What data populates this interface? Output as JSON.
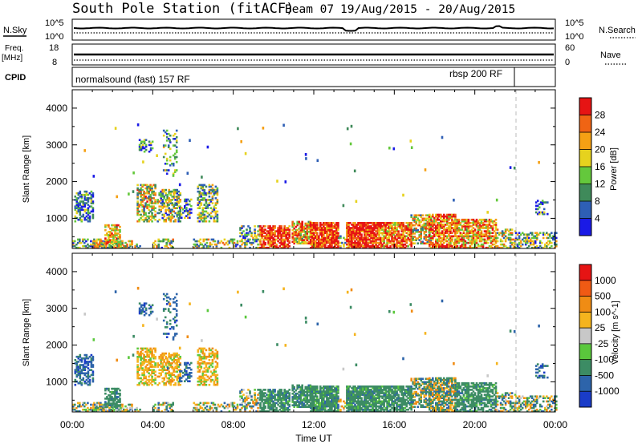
{
  "header": {
    "station": "South Pole Station (fitACF)",
    "beam": "Beam 07",
    "dates": "19/Aug/2015 - 20/Aug/2015"
  },
  "sky_panel": {
    "left_label": "N.Sky",
    "left_top": "10^5",
    "left_bottom": "10^0",
    "right_label": "N.Search",
    "right_top": "10^5",
    "right_bottom": "10^0"
  },
  "freq_panel": {
    "left_label_1": "Freq.",
    "left_label_2": "[MHz]",
    "left_top": "18",
    "left_bottom": "8",
    "right_label": "Nave",
    "right_top": "60",
    "right_bottom": "0"
  },
  "cpid": {
    "label": "CPID",
    "program_1": "normalsound (fast) 157 RF",
    "program_2": "rbsp 200 RF"
  },
  "chart_data": [
    {
      "type": "heatmap",
      "name": "power",
      "ylabel": "Slant Range [km]",
      "yticks": [
        "1000",
        "2000",
        "3000",
        "4000"
      ],
      "ylim": [
        180,
        4500
      ],
      "colorbar_label": "Power [dB]",
      "colorbar_ticks": [
        "4",
        "8",
        "12",
        "16",
        "20",
        "24",
        "28"
      ],
      "colors": [
        "#1a1ae6",
        "#2e5fb5",
        "#3f8a5a",
        "#64c83c",
        "#e6d21e",
        "#f5a014",
        "#f06414",
        "#e61414"
      ]
    },
    {
      "type": "heatmap",
      "name": "velocity",
      "ylabel": "Slant Range [km]",
      "yticks": [
        "1000",
        "2000",
        "3000",
        "4000"
      ],
      "ylim": [
        180,
        4500
      ],
      "colorbar_label": "Velocity [m s^-1]",
      "colorbar_ticks": [
        "1000",
        "500",
        "100",
        "25",
        "-25",
        "-100",
        "-500",
        "-1000"
      ],
      "colors": [
        "#1a3cc8",
        "#2d64aa",
        "#3c8c64",
        "#5ac83c",
        "#c8c8c8",
        "#f5b41e",
        "#f08c14",
        "#f05a14",
        "#e61414"
      ]
    }
  ],
  "xaxis": {
    "label": "Time UT",
    "ticks": [
      "00:00",
      "04:00",
      "08:00",
      "12:00",
      "16:00",
      "20:00",
      "00:00"
    ]
  }
}
